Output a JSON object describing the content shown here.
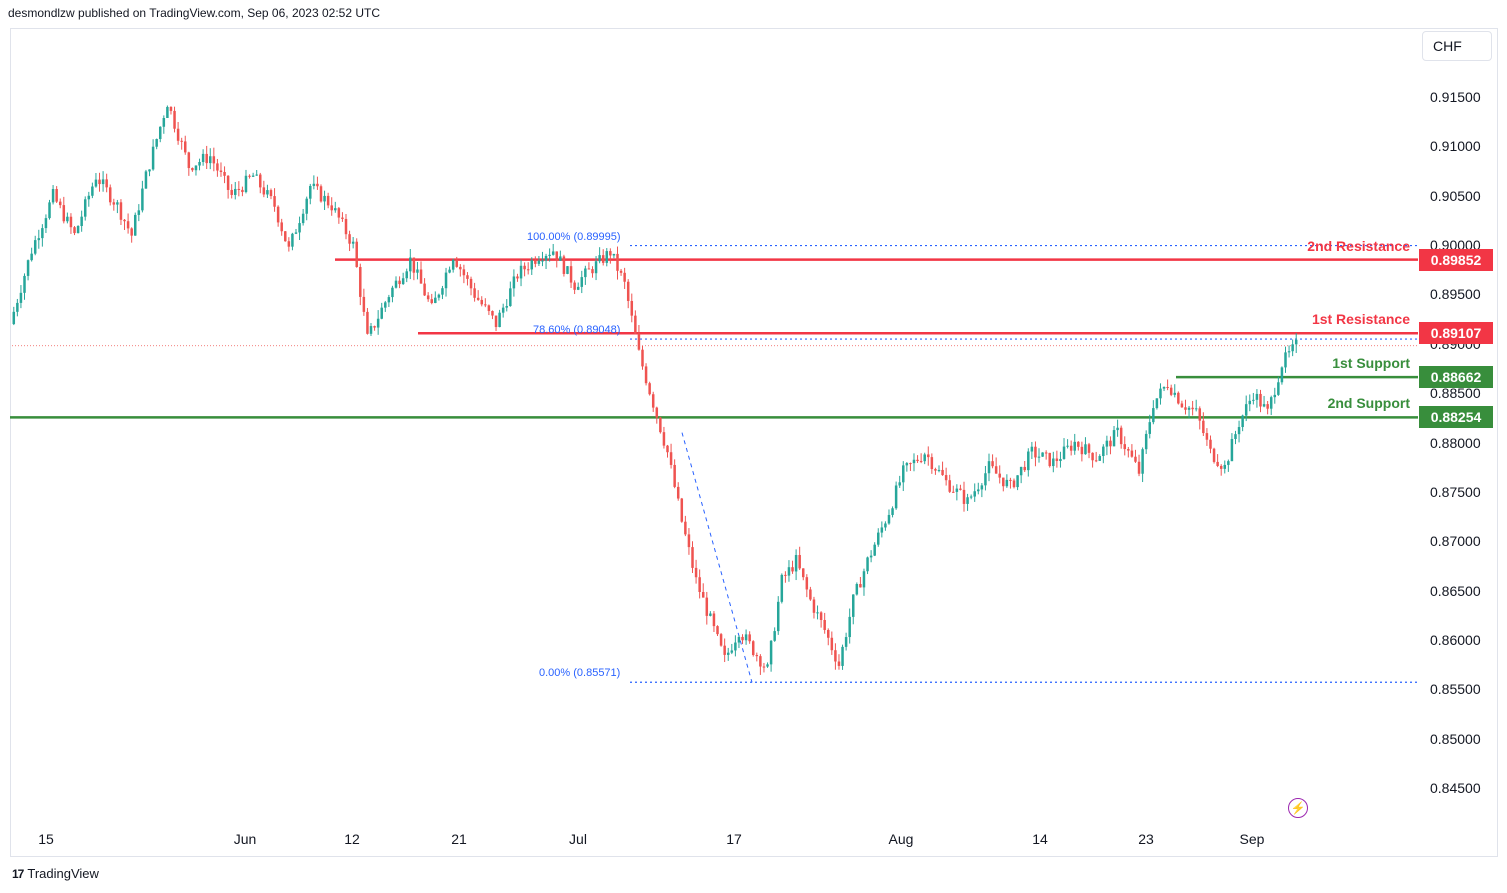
{
  "header": {
    "publisher_text": "desmondlzw published on TradingView.com, Sep 06, 2023 02:52 UTC"
  },
  "footer": {
    "brand": "TradingView",
    "logo_glyph": "17"
  },
  "currency": "CHF",
  "flash_glyph": "⚡",
  "colors": {
    "up": "#26a69a",
    "down": "#ef5350",
    "resistance": "#f23645",
    "support": "#388e3c",
    "fib": "#2962ff"
  },
  "chart_data": {
    "type": "candlestick",
    "y_ticks": [
      "0.91500",
      "0.91000",
      "0.90500",
      "0.90000",
      "0.89500",
      "0.89000",
      "0.88500",
      "0.88000",
      "0.87500",
      "0.87000",
      "0.86500",
      "0.86000",
      "0.85500",
      "0.85000",
      "0.84500"
    ],
    "x_ticks": [
      "15",
      "Jun",
      "12",
      "21",
      "Jul",
      "17",
      "Aug",
      "14",
      "23",
      "Sep"
    ],
    "ylim": [
      0.8425,
      0.9185
    ],
    "levels": [
      {
        "name": "2nd Resistance",
        "value": "0.89852",
        "type": "resistance"
      },
      {
        "name": "1st Resistance",
        "value": "0.89107",
        "type": "resistance"
      },
      {
        "name": "1st Support",
        "value": "0.88662",
        "type": "support"
      },
      {
        "name": "2nd Support",
        "value": "0.88254",
        "type": "support"
      }
    ],
    "fibonacci": [
      {
        "label": "100.00% (0.89995)",
        "value": 0.89995
      },
      {
        "label": "78.60% (0.89048)",
        "value": 0.89048
      },
      {
        "label": "0.00% (0.85571)",
        "value": 0.85571
      }
    ],
    "anchor_path": [
      [
        0,
        0.892
      ],
      [
        6,
        0.8995
      ],
      [
        12,
        0.905
      ],
      [
        18,
        0.901
      ],
      [
        24,
        0.907
      ],
      [
        30,
        0.904
      ],
      [
        34,
        0.901
      ],
      [
        38,
        0.907
      ],
      [
        44,
        0.9145
      ],
      [
        50,
        0.908
      ],
      [
        56,
        0.909
      ],
      [
        62,
        0.905
      ],
      [
        68,
        0.907
      ],
      [
        74,
        0.904
      ],
      [
        78,
        0.8995
      ],
      [
        84,
        0.906
      ],
      [
        90,
        0.904
      ],
      [
        96,
        0.9
      ],
      [
        100,
        0.8905
      ],
      [
        106,
        0.895
      ],
      [
        112,
        0.8985
      ],
      [
        118,
        0.8935
      ],
      [
        124,
        0.899
      ],
      [
        130,
        0.895
      ],
      [
        136,
        0.892
      ],
      [
        142,
        0.897
      ],
      [
        148,
        0.899
      ],
      [
        152,
        0.8995
      ],
      [
        158,
        0.896
      ],
      [
        164,
        0.898
      ],
      [
        168,
        0.8993
      ],
      [
        172,
        0.896
      ],
      [
        176,
        0.889
      ],
      [
        180,
        0.884
      ],
      [
        184,
        0.879
      ],
      [
        188,
        0.872
      ],
      [
        192,
        0.866
      ],
      [
        196,
        0.862
      ],
      [
        200,
        0.858
      ],
      [
        204,
        0.861
      ],
      [
        208,
        0.859
      ],
      [
        212,
        0.857
      ],
      [
        216,
        0.866
      ],
      [
        220,
        0.868
      ],
      [
        224,
        0.864
      ],
      [
        228,
        0.861
      ],
      [
        232,
        0.8575
      ],
      [
        236,
        0.864
      ],
      [
        240,
        0.868
      ],
      [
        246,
        0.873
      ],
      [
        250,
        0.877
      ],
      [
        256,
        0.879
      ],
      [
        262,
        0.876
      ],
      [
        268,
        0.874
      ],
      [
        274,
        0.8775
      ],
      [
        280,
        0.8755
      ],
      [
        286,
        0.879
      ],
      [
        292,
        0.878
      ],
      [
        298,
        0.88
      ],
      [
        304,
        0.8785
      ],
      [
        310,
        0.881
      ],
      [
        316,
        0.877
      ],
      [
        320,
        0.884
      ],
      [
        324,
        0.886
      ],
      [
        328,
        0.884
      ],
      [
        332,
        0.883
      ],
      [
        336,
        0.879
      ],
      [
        340,
        0.8775
      ],
      [
        344,
        0.882
      ],
      [
        348,
        0.885
      ],
      [
        352,
        0.883
      ],
      [
        356,
        0.888
      ],
      [
        360,
        0.8898
      ]
    ],
    "candle_count": 360
  }
}
